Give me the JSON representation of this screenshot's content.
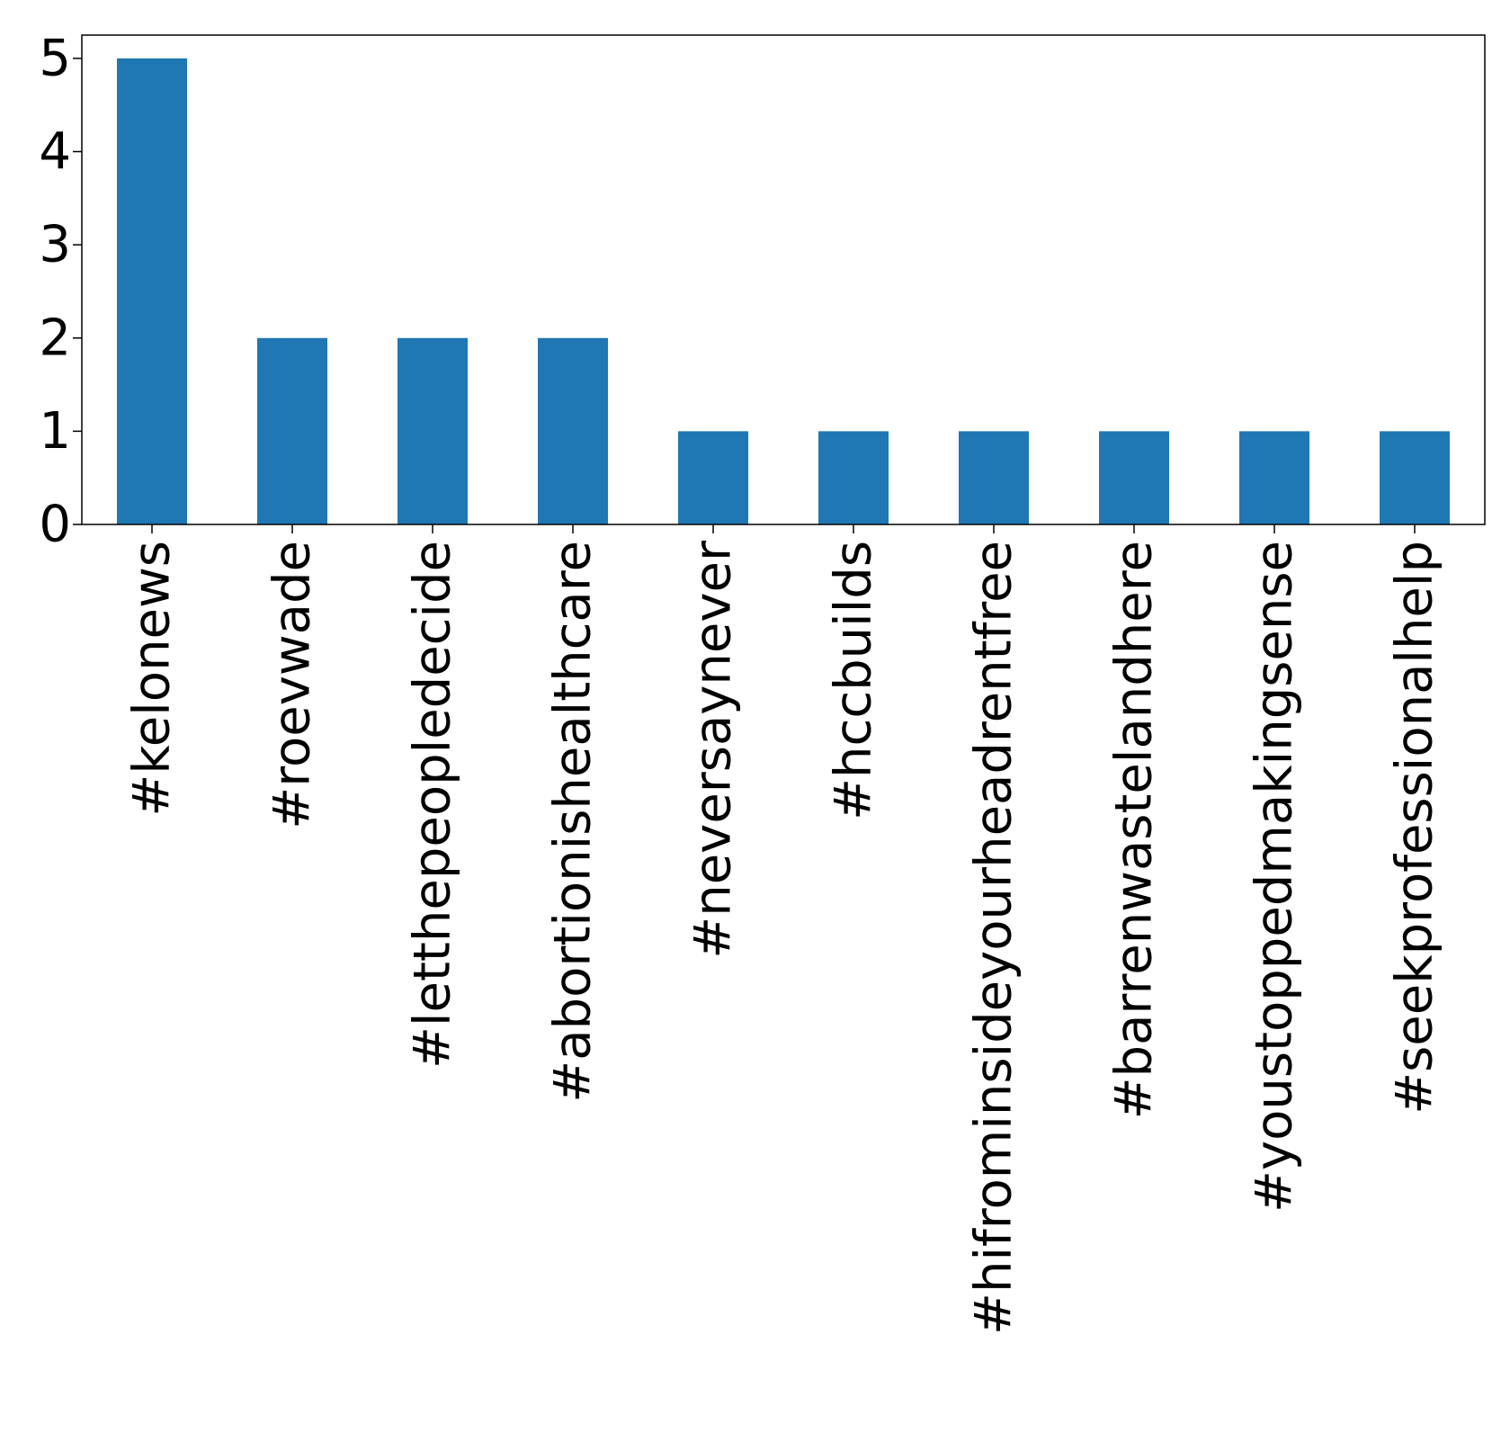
{
  "chart_data": {
    "type": "bar",
    "categories": [
      "#kelonews",
      "#roevwade",
      "#letthepeopledecide",
      "#abortionishealthcare",
      "#neversaynever",
      "#hccbuilds",
      "#hifrominsideyourheadrentfree",
      "#barrenwastelandhere",
      "#youstoppedmakingsense",
      "#seekprofessionalhelp"
    ],
    "values": [
      5,
      2,
      2,
      2,
      1,
      1,
      1,
      1,
      1,
      1
    ],
    "title": "",
    "xlabel": "",
    "ylabel": "",
    "ylim": [
      0,
      5.25
    ],
    "yticks": [
      "0",
      "1",
      "2",
      "3",
      "4",
      "5"
    ],
    "bar_color": "#1f77b4",
    "grid": false,
    "legend": "none"
  }
}
